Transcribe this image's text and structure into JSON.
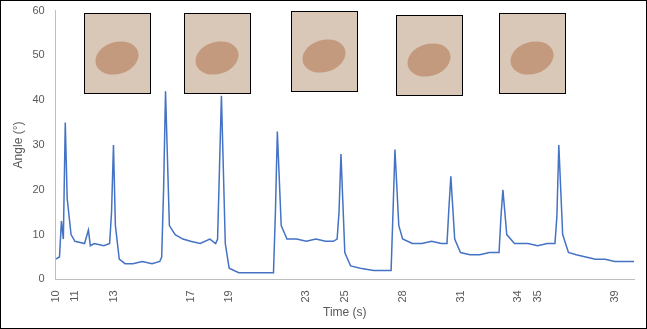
{
  "chart_data": {
    "type": "line",
    "xlabel": "Time (s)",
    "ylabel": "Angle (°)",
    "x": [
      10,
      10.2,
      10.3,
      10.4,
      10.5,
      10.6,
      10.8,
      11,
      11.5,
      11.7,
      11.8,
      12,
      12.5,
      12.8,
      12.9,
      13.0,
      13.1,
      13.3,
      13.6,
      14,
      14.5,
      15,
      15.4,
      15.5,
      15.6,
      15.7,
      15.9,
      16.2,
      16.6,
      17,
      17.5,
      18,
      18.3,
      18.4,
      18.5,
      18.6,
      18.8,
      19,
      19.5,
      20,
      20.5,
      21,
      21.3,
      21.4,
      21.5,
      21.7,
      22,
      22.5,
      23,
      23.5,
      24,
      24.4,
      24.6,
      24.7,
      24.8,
      25,
      25.3,
      25.8,
      26.5,
      27,
      27.4,
      27.5,
      27.6,
      27.8,
      28,
      28.5,
      29,
      29.5,
      30,
      30.3,
      30.4,
      30.5,
      30.7,
      31,
      31.5,
      32,
      32.5,
      33,
      33.1,
      33.2,
      33.4,
      33.8,
      34.5,
      35,
      35.5,
      35.9,
      36,
      36.1,
      36.3,
      36.6,
      37,
      37.5,
      38,
      38.5,
      39,
      39.5,
      40
    ],
    "values": [
      4.5,
      5,
      13,
      9,
      35,
      18,
      10,
      8.5,
      8,
      11,
      7.5,
      8,
      7.5,
      8,
      15,
      30,
      12,
      4.5,
      3.5,
      3.5,
      4,
      3.5,
      4,
      5,
      20,
      42,
      12,
      10,
      9,
      8.5,
      8,
      9,
      8,
      9,
      25,
      41,
      8,
      2.5,
      1.5,
      1.5,
      1.5,
      1.5,
      1.5,
      15,
      33,
      12,
      9,
      9,
      8.5,
      9,
      8.5,
      8.5,
      9,
      15,
      28,
      6,
      3,
      2.5,
      2,
      2,
      2,
      15,
      29,
      12,
      9,
      8,
      8,
      8.5,
      8,
      8,
      16,
      23,
      9,
      6,
      5.5,
      5.5,
      6,
      6,
      14,
      20,
      10,
      8,
      8,
      7.5,
      8,
      8,
      14,
      30,
      10,
      6,
      5.5,
      5,
      4.5,
      4.5,
      4,
      4,
      4
    ],
    "color": "#4472c4",
    "xlim": [
      10,
      40
    ],
    "xticks": [
      10,
      11,
      13,
      17,
      19,
      23,
      25,
      28,
      31,
      34,
      35,
      39
    ],
    "ylim": [
      0,
      60
    ],
    "yticks": [
      0,
      10,
      20,
      30,
      40,
      50,
      60
    ],
    "grid": false,
    "marker": "none",
    "line_style": "solid"
  }
}
